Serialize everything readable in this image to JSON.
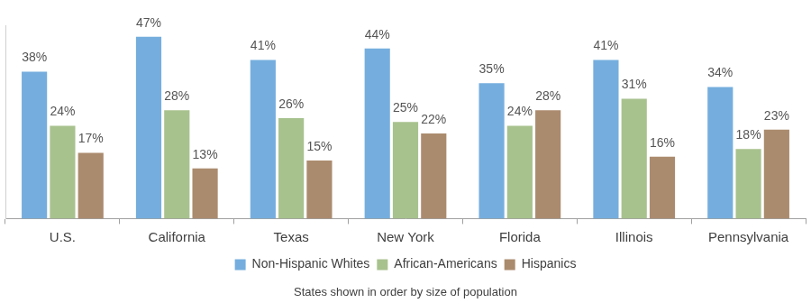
{
  "chart_data": {
    "type": "bar",
    "xlabel": "States shown in order by size of population",
    "categories": [
      "U.S.",
      "California",
      "Texas",
      "New York",
      "Florida",
      "Illinois",
      "Pennsylvania"
    ],
    "series": [
      {
        "name": "Non-Hispanic Whites",
        "color": "#75aede",
        "values": [
          38,
          47,
          41,
          44,
          35,
          41,
          34
        ],
        "value_labels": [
          "38%",
          "47%",
          "41%",
          "44%",
          "35%",
          "41%",
          "34%"
        ]
      },
      {
        "name": "African-Americans",
        "color": "#a8c28e",
        "values": [
          24,
          28,
          26,
          25,
          24,
          31,
          18
        ],
        "value_labels": [
          "24%",
          "28%",
          "26%",
          "25%",
          "24%",
          "31%",
          "18%"
        ]
      },
      {
        "name": "Hispanics",
        "color": "#ab8b6e",
        "values": [
          17,
          13,
          15,
          22,
          28,
          16,
          23
        ],
        "value_labels": [
          "17%",
          "13%",
          "15%",
          "22%",
          "28%",
          "16%",
          "23%"
        ]
      }
    ],
    "ylim": [
      0,
      50
    ],
    "grid": false,
    "legend": "bottom",
    "data_labels": true,
    "tick_labels": "x"
  }
}
